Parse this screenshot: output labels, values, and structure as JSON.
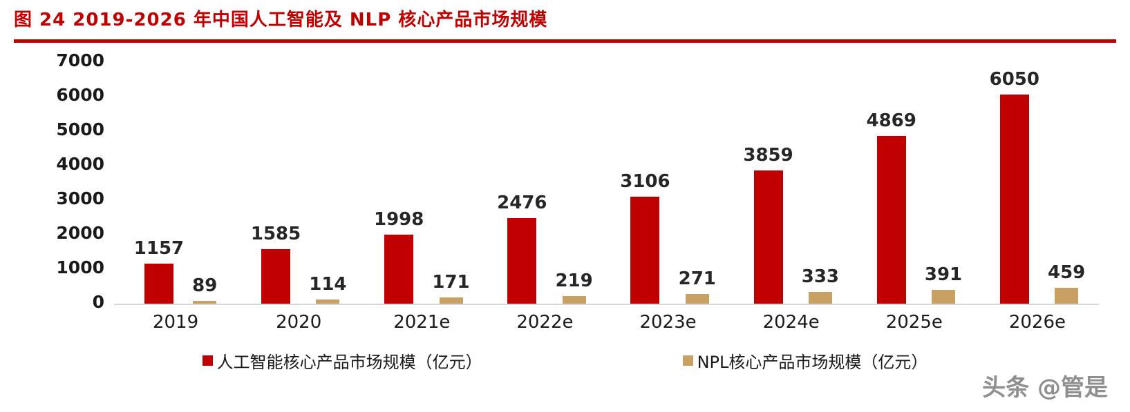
{
  "title": "图 24 2019-2026 年中国人工智能及 NLP 核心产品市场规模",
  "watermark": "头条 @管是",
  "colors": {
    "accent_red": "#C00000",
    "bar_red": "#C00000",
    "bar_tan": "#C9A063",
    "baseline": "#D6D6D6",
    "label_text": "#262626",
    "watermark_gray": "#8F8F8F"
  },
  "chart_data": {
    "type": "bar",
    "title": "图 24 2019-2026 年中国人工智能及 NLP 核心产品市场规模",
    "categories": [
      "2019",
      "2020",
      "2021e",
      "2022e",
      "2023e",
      "2024e",
      "2025e",
      "2026e"
    ],
    "series": [
      {
        "name": "人工智能核心产品市场规模（亿元）",
        "color": "#C00000",
        "values": [
          1157,
          1585,
          1998,
          2476,
          3106,
          3859,
          4869,
          6050
        ]
      },
      {
        "name": "NPL核心产品市场规模（亿元）",
        "color": "#C9A063",
        "values": [
          89,
          114,
          171,
          219,
          271,
          333,
          391,
          459
        ]
      }
    ],
    "xlabel": "",
    "ylabel": "",
    "ylim": [
      0,
      7000
    ],
    "yticks": [
      0,
      1000,
      2000,
      3000,
      4000,
      5000,
      6000,
      7000
    ],
    "grid": false,
    "legend_position": "bottom"
  }
}
